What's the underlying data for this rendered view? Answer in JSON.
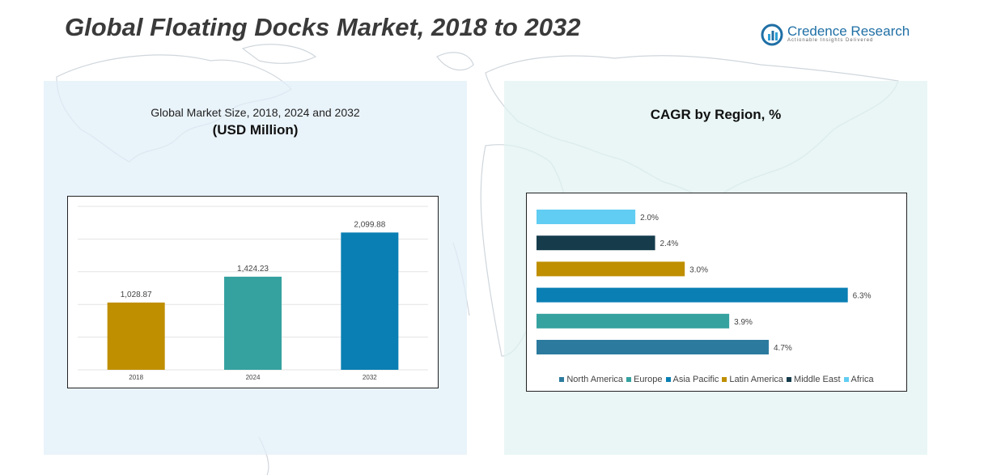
{
  "header": {
    "title": "Global Floating Docks Market, 2018 to 2032"
  },
  "logo": {
    "name": "Credence Research",
    "tagline": "Actionable Insights Delivered"
  },
  "left_panel": {
    "subtitle": "Global Market Size, 2018, 2024 and 2032",
    "unit": "(USD Million)"
  },
  "right_panel": {
    "title": "CAGR by Region, %"
  },
  "chart_data": [
    {
      "type": "bar",
      "orientation": "vertical",
      "title": "Global Market Size, 2018, 2024 and 2032",
      "subtitle": "(USD Million)",
      "categories": [
        "2018",
        "2024",
        "2032"
      ],
      "values": [
        1028.87,
        1424.23,
        2099.88
      ],
      "labels": [
        "1,028.87",
        "1,424.23",
        "2,099.88"
      ],
      "colors": [
        "#bf8f00",
        "#35a2a0",
        "#0a7fb3"
      ],
      "ylim": [
        0,
        2500
      ],
      "grid": true
    },
    {
      "type": "bar",
      "orientation": "horizontal",
      "title": "CAGR by Region, %",
      "categories": [
        "Africa",
        "Middle East",
        "Latin America",
        "Asia Pacific",
        "Europe",
        "North America"
      ],
      "values": [
        2.0,
        2.4,
        3.0,
        6.3,
        3.9,
        4.7
      ],
      "labels": [
        "2.0%",
        "2.4%",
        "3.0%",
        "6.3%",
        "3.9%",
        "4.7%"
      ],
      "colors": [
        "#61cdf2",
        "#163c4c",
        "#bf8f00",
        "#0a7fb3",
        "#35a2a0",
        "#2c7b9e"
      ],
      "xlim": [
        0,
        6.6
      ],
      "legend": {
        "position": "bottom",
        "entries": [
          "North America",
          "Europe",
          "Asia Pacific",
          "Latin America",
          "Middle East",
          "Africa"
        ],
        "colors": [
          "#2c7b9e",
          "#35a2a0",
          "#0a7fb3",
          "#bf8f00",
          "#163c4c",
          "#61cdf2"
        ]
      }
    }
  ]
}
